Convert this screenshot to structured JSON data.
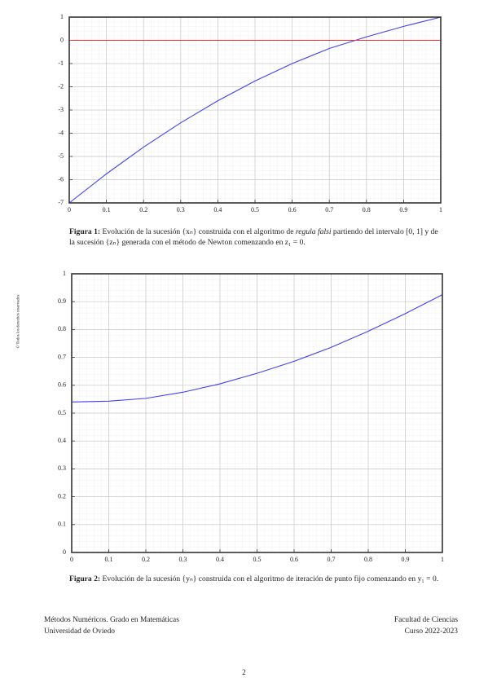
{
  "chart_data": [
    {
      "type": "line",
      "x": [
        0,
        0.1,
        0.2,
        0.3,
        0.4,
        0.5,
        0.6,
        0.7,
        0.8,
        0.9,
        1
      ],
      "series": [
        {
          "color": "#4040ff",
          "values": [
            -7,
            -5.75,
            -4.6,
            -3.55,
            -2.6,
            -1.75,
            -1.0,
            -0.35,
            0.15,
            0.6,
            1
          ]
        },
        {
          "color": "#ff3030",
          "values": [
            0,
            0,
            0,
            0,
            0,
            0,
            0,
            0,
            0,
            0,
            0
          ]
        }
      ],
      "xlim": [
        0,
        1
      ],
      "xticks": [
        0,
        0.1,
        0.2,
        0.3,
        0.4,
        0.5,
        0.6,
        0.7,
        0.8,
        0.9,
        1
      ],
      "ylim": [
        -7,
        1
      ],
      "yticks": [
        1,
        0,
        -1,
        -2,
        -3,
        -4,
        -5,
        -6,
        -7
      ],
      "grid": true
    },
    {
      "type": "line",
      "x": [
        0,
        0.1,
        0.2,
        0.3,
        0.4,
        0.5,
        0.6,
        0.7,
        0.8,
        0.9,
        1
      ],
      "series": [
        {
          "color": "#4040ff",
          "values": [
            0.54,
            0.543,
            0.553,
            0.575,
            0.605,
            0.643,
            0.686,
            0.736,
            0.794,
            0.857,
            0.925
          ]
        }
      ],
      "xlim": [
        0,
        1
      ],
      "xticks": [
        0,
        0.1,
        0.2,
        0.3,
        0.4,
        0.5,
        0.6,
        0.7,
        0.8,
        0.9,
        1
      ],
      "ylim": [
        0,
        1
      ],
      "yticks": [
        0,
        0.1,
        0.2,
        0.3,
        0.4,
        0.5,
        0.6,
        0.7,
        0.8,
        0.9,
        1
      ],
      "grid": true
    }
  ],
  "captions": [
    {
      "label": "Figura 1:",
      "parts": [
        "Evolución de la sucesión {xₙ} construida con el algoritmo de ",
        "regula falsi",
        " partiendo del intervalo [0, 1] y de la sucesión {zₙ} generada con el método de Newton comenzando en z₁ = 0."
      ]
    },
    {
      "label": "Figura 2:",
      "parts": [
        "Evolución de la sucesión {yₙ} construida con el algoritmo de iteración de punto fijo comenzando en y₁ = 0."
      ]
    }
  ],
  "side_note": "© Todos los derechos reservados",
  "footer": {
    "left": [
      "Métodos Numéricos. Grado en Matemáticas",
      "Universidad de Oviedo"
    ],
    "right": [
      "Facultad de Ciencias",
      "Curso 2022-2023"
    ]
  },
  "page_number": "2"
}
